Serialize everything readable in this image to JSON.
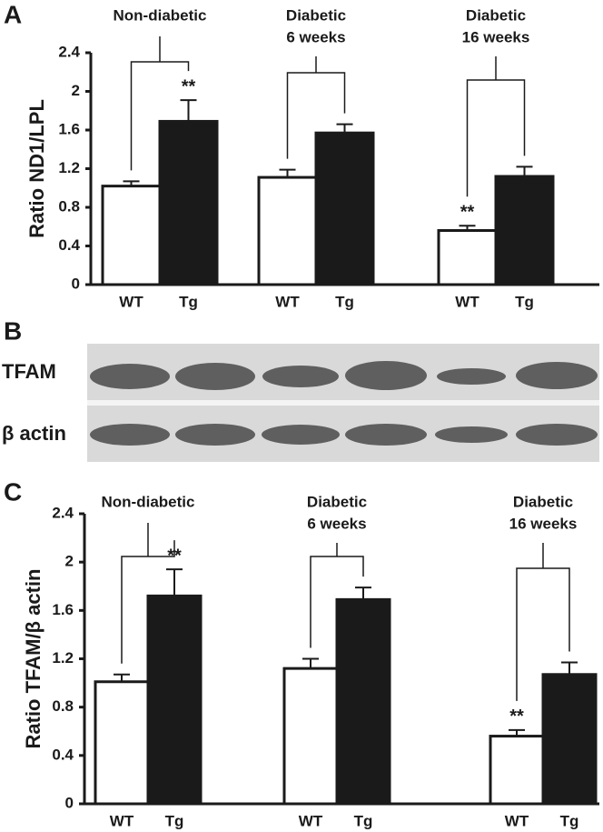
{
  "chart_data": [
    {
      "type": "bar",
      "panel": "A",
      "y_label": "Ratio ND1/LPL",
      "groups": [
        [
          "Non-diabetic"
        ],
        [
          "Diabetic",
          "6 weeks"
        ],
        [
          "Diabetic",
          "16 weeks"
        ]
      ],
      "categories": [
        "WT",
        "Tg",
        "WT",
        "Tg",
        "WT",
        "Tg"
      ],
      "values": [
        1.02,
        1.69,
        1.11,
        1.57,
        0.56,
        1.12
      ],
      "errors": [
        0.05,
        0.22,
        0.08,
        0.09,
        0.05,
        0.1
      ],
      "significance": [
        null,
        "**",
        null,
        null,
        "**",
        null
      ],
      "colors": [
        "#ffffff",
        "#1a1a1a",
        "#ffffff",
        "#1a1a1a",
        "#ffffff",
        "#1a1a1a"
      ],
      "ylim": [
        0,
        2.4
      ],
      "yticks": [
        0,
        0.4,
        0.8,
        1.2,
        1.6,
        2,
        2.4
      ]
    },
    {
      "type": "bar",
      "panel": "C",
      "y_label": "Ratio TFAM/β actin",
      "groups": [
        [
          "Non-diabetic"
        ],
        [
          "Diabetic",
          "6 weeks"
        ],
        [
          "Diabetic",
          "16 weeks"
        ]
      ],
      "categories": [
        "WT",
        "Tg",
        "WT",
        "Tg",
        "WT",
        "Tg"
      ],
      "values": [
        1.01,
        1.72,
        1.12,
        1.69,
        0.56,
        1.07
      ],
      "errors": [
        0.06,
        0.22,
        0.08,
        0.1,
        0.05,
        0.1
      ],
      "significance": [
        null,
        "**",
        null,
        null,
        "**",
        null
      ],
      "colors": [
        "#ffffff",
        "#1a1a1a",
        "#ffffff",
        "#1a1a1a",
        "#ffffff",
        "#1a1a1a"
      ],
      "ylim": [
        0,
        2.4
      ],
      "yticks": [
        0,
        0.4,
        0.8,
        1.2,
        1.6,
        2,
        2.4
      ]
    }
  ],
  "blot": {
    "panel": "B",
    "rows": [
      "TFAM",
      "β actin"
    ]
  }
}
